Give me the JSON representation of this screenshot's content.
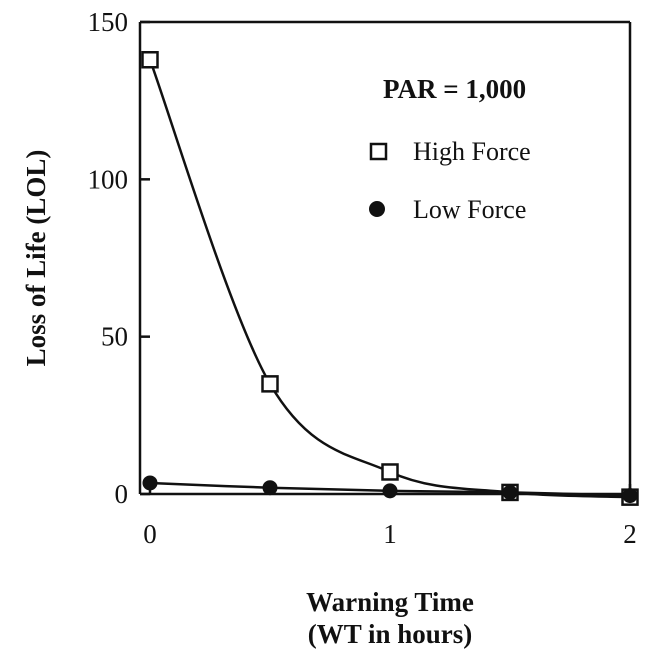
{
  "chart_data": {
    "type": "line",
    "xlabel_line1": "Warning Time",
    "xlabel_line2": "(WT in hours)",
    "ylabel": "Loss of Life (LOL)",
    "xlim": [
      0,
      2
    ],
    "ylim": [
      0,
      150
    ],
    "x_ticks": [
      "0",
      "1",
      "2"
    ],
    "y_ticks": [
      "0",
      "50",
      "100",
      "150"
    ],
    "legend_title": "PAR = 1,000",
    "legend_position": "top-right",
    "grid": false,
    "series": [
      {
        "name": "High Force",
        "marker": "open-square",
        "x": [
          0,
          0.5,
          1,
          1.5,
          2
        ],
        "y": [
          138,
          35,
          7,
          0.5,
          -1
        ]
      },
      {
        "name": "Low Force",
        "marker": "filled-circle",
        "x": [
          0,
          0.5,
          1,
          1.5,
          2
        ],
        "y": [
          3.5,
          2,
          1,
          0.5,
          -0.5
        ]
      }
    ]
  }
}
